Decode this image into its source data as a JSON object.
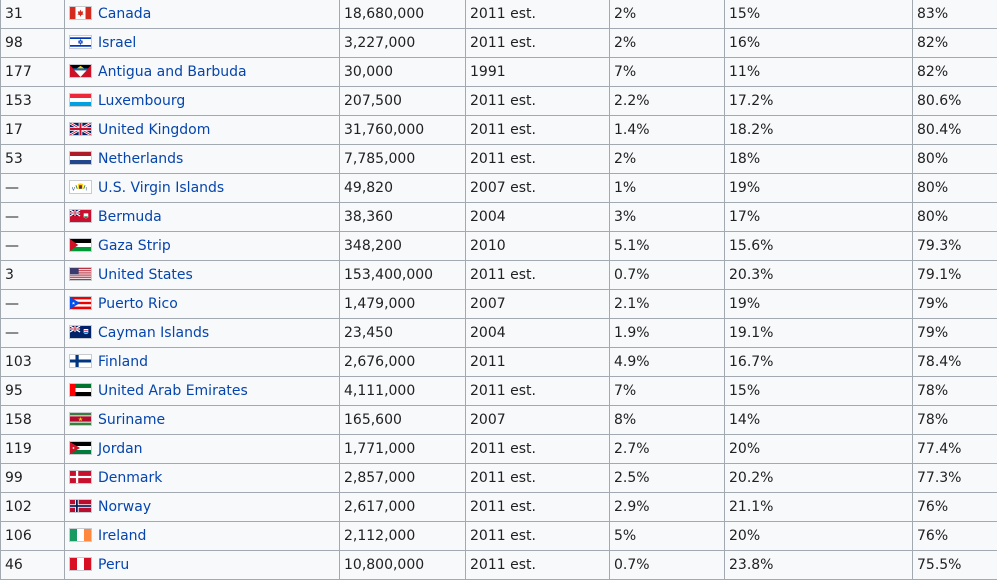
{
  "table": {
    "rows": [
      {
        "rank": "31",
        "country": "Canada",
        "flag": "canada-flag-icon",
        "population": "18,680,000",
        "year": "2011 est.",
        "agriculture": "2%",
        "industry": "15%",
        "services": "83%"
      },
      {
        "rank": "98",
        "country": "Israel",
        "flag": "israel-flag-icon",
        "population": "3,227,000",
        "year": "2011 est.",
        "agriculture": "2%",
        "industry": "16%",
        "services": "82%"
      },
      {
        "rank": "177",
        "country": "Antigua and Barbuda",
        "flag": "antigua-and-barbuda-flag-icon",
        "population": "30,000",
        "year": "1991",
        "agriculture": "7%",
        "industry": "11%",
        "services": "82%"
      },
      {
        "rank": "153",
        "country": "Luxembourg",
        "flag": "luxembourg-flag-icon",
        "population": "207,500",
        "year": "2011 est.",
        "agriculture": "2.2%",
        "industry": "17.2%",
        "services": "80.6%"
      },
      {
        "rank": "17",
        "country": "United Kingdom",
        "flag": "united-kingdom-flag-icon",
        "population": "31,760,000",
        "year": "2011 est.",
        "agriculture": "1.4%",
        "industry": "18.2%",
        "services": "80.4%"
      },
      {
        "rank": "53",
        "country": "Netherlands",
        "flag": "netherlands-flag-icon",
        "population": "7,785,000",
        "year": "2011 est.",
        "agriculture": "2%",
        "industry": "18%",
        "services": "80%"
      },
      {
        "rank": "—",
        "country": "U.S. Virgin Islands",
        "flag": "us-virgin-islands-flag-icon",
        "population": "49,820",
        "year": "2007 est.",
        "agriculture": "1%",
        "industry": "19%",
        "services": "80%"
      },
      {
        "rank": "—",
        "country": "Bermuda",
        "flag": "bermuda-flag-icon",
        "population": "38,360",
        "year": "2004",
        "agriculture": "3%",
        "industry": "17%",
        "services": "80%"
      },
      {
        "rank": "—",
        "country": "Gaza Strip",
        "flag": "gaza-strip-flag-icon",
        "population": "348,200",
        "year": "2010",
        "agriculture": "5.1%",
        "industry": "15.6%",
        "services": "79.3%"
      },
      {
        "rank": "3",
        "country": "United States",
        "flag": "united-states-flag-icon",
        "population": "153,400,000",
        "year": "2011 est.",
        "agriculture": "0.7%",
        "industry": "20.3%",
        "services": "79.1%"
      },
      {
        "rank": "—",
        "country": "Puerto Rico",
        "flag": "puerto-rico-flag-icon",
        "population": "1,479,000",
        "year": "2007",
        "agriculture": "2.1%",
        "industry": "19%",
        "services": "79%"
      },
      {
        "rank": "—",
        "country": "Cayman Islands",
        "flag": "cayman-islands-flag-icon",
        "population": "23,450",
        "year": "2004",
        "agriculture": "1.9%",
        "industry": "19.1%",
        "services": "79%"
      },
      {
        "rank": "103",
        "country": "Finland",
        "flag": "finland-flag-icon",
        "population": "2,676,000",
        "year": "2011",
        "agriculture": "4.9%",
        "industry": "16.7%",
        "services": "78.4%"
      },
      {
        "rank": "95",
        "country": "United Arab Emirates",
        "flag": "united-arab-emirates-flag-icon",
        "population": "4,111,000",
        "year": "2011 est.",
        "agriculture": "7%",
        "industry": "15%",
        "services": "78%"
      },
      {
        "rank": "158",
        "country": "Suriname",
        "flag": "suriname-flag-icon",
        "population": "165,600",
        "year": "2007",
        "agriculture": "8%",
        "industry": "14%",
        "services": "78%"
      },
      {
        "rank": "119",
        "country": "Jordan",
        "flag": "jordan-flag-icon",
        "population": "1,771,000",
        "year": "2011 est.",
        "agriculture": "2.7%",
        "industry": "20%",
        "services": "77.4%"
      },
      {
        "rank": "99",
        "country": "Denmark",
        "flag": "denmark-flag-icon",
        "population": "2,857,000",
        "year": "2011 est.",
        "agriculture": "2.5%",
        "industry": "20.2%",
        "services": "77.3%"
      },
      {
        "rank": "102",
        "country": "Norway",
        "flag": "norway-flag-icon",
        "population": "2,617,000",
        "year": "2011 est.",
        "agriculture": "2.9%",
        "industry": "21.1%",
        "services": "76%"
      },
      {
        "rank": "106",
        "country": "Ireland",
        "flag": "ireland-flag-icon",
        "population": "2,112,000",
        "year": "2011 est.",
        "agriculture": "5%",
        "industry": "20%",
        "services": "76%"
      },
      {
        "rank": "46",
        "country": "Peru",
        "flag": "peru-flag-icon",
        "population": "10,800,000",
        "year": "2011 est.",
        "agriculture": "0.7%",
        "industry": "23.8%",
        "services": "75.5%"
      }
    ]
  },
  "colors": {
    "link": "#0645ad",
    "text": "#202122",
    "cell_background": "#f8f9fa",
    "border": "#a2a9b1"
  }
}
